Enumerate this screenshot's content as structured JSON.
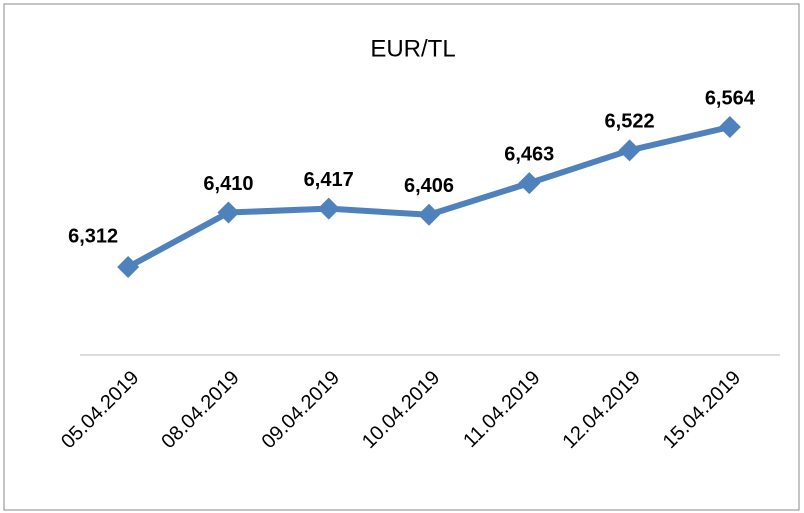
{
  "chart_data": {
    "type": "line",
    "title": "EUR/TL",
    "categories": [
      "05.04.2019",
      "08.04.2019",
      "09.04.2019",
      "10.04.2019",
      "11.04.2019",
      "12.04.2019",
      "15.04.2019"
    ],
    "values": [
      6.312,
      6.41,
      6.417,
      6.406,
      6.463,
      6.522,
      6.564
    ],
    "value_labels": [
      "6,312",
      "6,410",
      "6,417",
      "6,406",
      "6,463",
      "6,522",
      "6,564"
    ],
    "color": "#4f81bd"
  }
}
